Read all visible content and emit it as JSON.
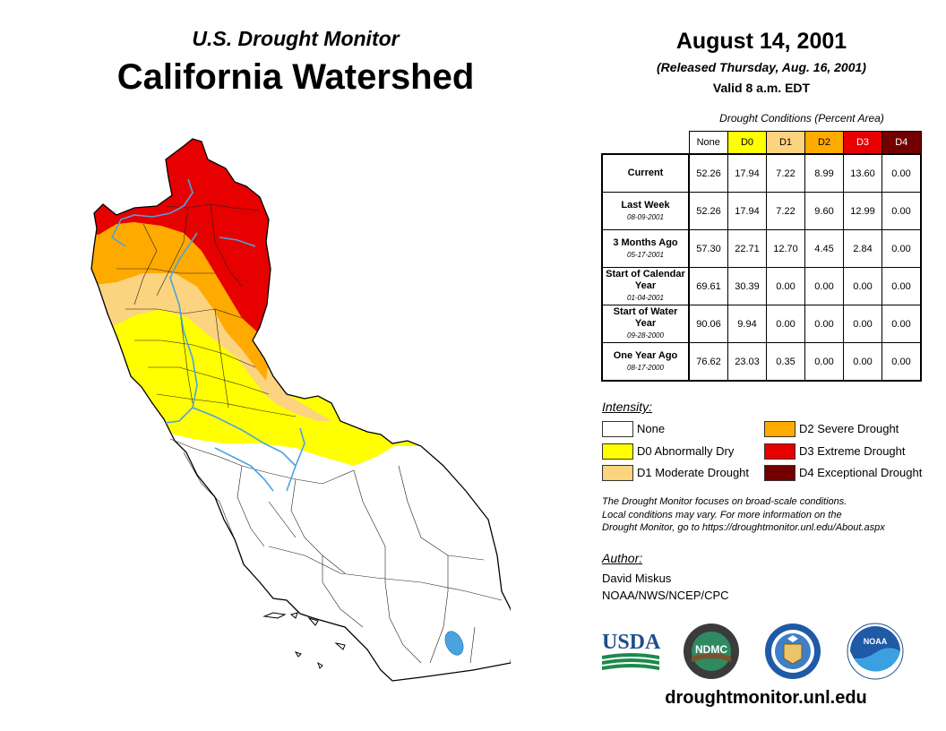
{
  "header": {
    "subtitle": "U.S. Drought Monitor",
    "title": "California Watershed"
  },
  "date_block": {
    "date": "August 14, 2001",
    "released": "(Released Thursday, Aug. 16, 2001)",
    "valid": "Valid 8 a.m. EDT"
  },
  "table": {
    "caption": "Drought Conditions (Percent Area)",
    "columns": [
      "None",
      "D0",
      "D1",
      "D2",
      "D3",
      "D4"
    ],
    "column_colors": [
      "#ffffff",
      "#ffff00",
      "#fcd37f",
      "#ffaa00",
      "#e60000",
      "#730000"
    ],
    "rows": [
      {
        "label": "Current",
        "date": "",
        "values": [
          "52.26",
          "17.94",
          "7.22",
          "8.99",
          "13.60",
          "0.00"
        ]
      },
      {
        "label": "Last Week",
        "date": "08-09-2001",
        "values": [
          "52.26",
          "17.94",
          "7.22",
          "9.60",
          "12.99",
          "0.00"
        ]
      },
      {
        "label": "3 Months Ago",
        "date": "05-17-2001",
        "values": [
          "57.30",
          "22.71",
          "12.70",
          "4.45",
          "2.84",
          "0.00"
        ]
      },
      {
        "label": "Start of Calendar Year",
        "date": "01-04-2001",
        "values": [
          "69.61",
          "30.39",
          "0.00",
          "0.00",
          "0.00",
          "0.00"
        ]
      },
      {
        "label": "Start of Water Year",
        "date": "09-28-2000",
        "values": [
          "90.06",
          "9.94",
          "0.00",
          "0.00",
          "0.00",
          "0.00"
        ]
      },
      {
        "label": "One Year Ago",
        "date": "08-17-2000",
        "values": [
          "76.62",
          "23.03",
          "0.35",
          "0.00",
          "0.00",
          "0.00"
        ]
      }
    ]
  },
  "legend": {
    "heading": "Intensity:",
    "items": [
      {
        "label": "None",
        "color": "#ffffff"
      },
      {
        "label": "D0 Abnormally Dry",
        "color": "#ffff00"
      },
      {
        "label": "D1 Moderate Drought",
        "color": "#fcd37f"
      },
      {
        "label": "D2 Severe Drought",
        "color": "#ffaa00"
      },
      {
        "label": "D3 Extreme Drought",
        "color": "#e60000"
      },
      {
        "label": "D4 Exceptional Drought",
        "color": "#730000"
      }
    ]
  },
  "note": {
    "line1": "The Drought Monitor focuses on broad-scale conditions.",
    "line2": "Local conditions may vary. For more information on the",
    "line3": "Drought Monitor, go to https://droughtmonitor.unl.edu/About.aspx"
  },
  "author": {
    "heading": "Author:",
    "name": "David Miskus",
    "org": "NOAA/NWS/NCEP/CPC"
  },
  "logos": {
    "usda": "USDA",
    "ndmc": "NDMC",
    "noaa": "NOAA"
  },
  "map": {
    "region": "California Watershed",
    "water_color": "#4aa3df"
  },
  "footer": {
    "url": "droughtmonitor.unl.edu"
  }
}
